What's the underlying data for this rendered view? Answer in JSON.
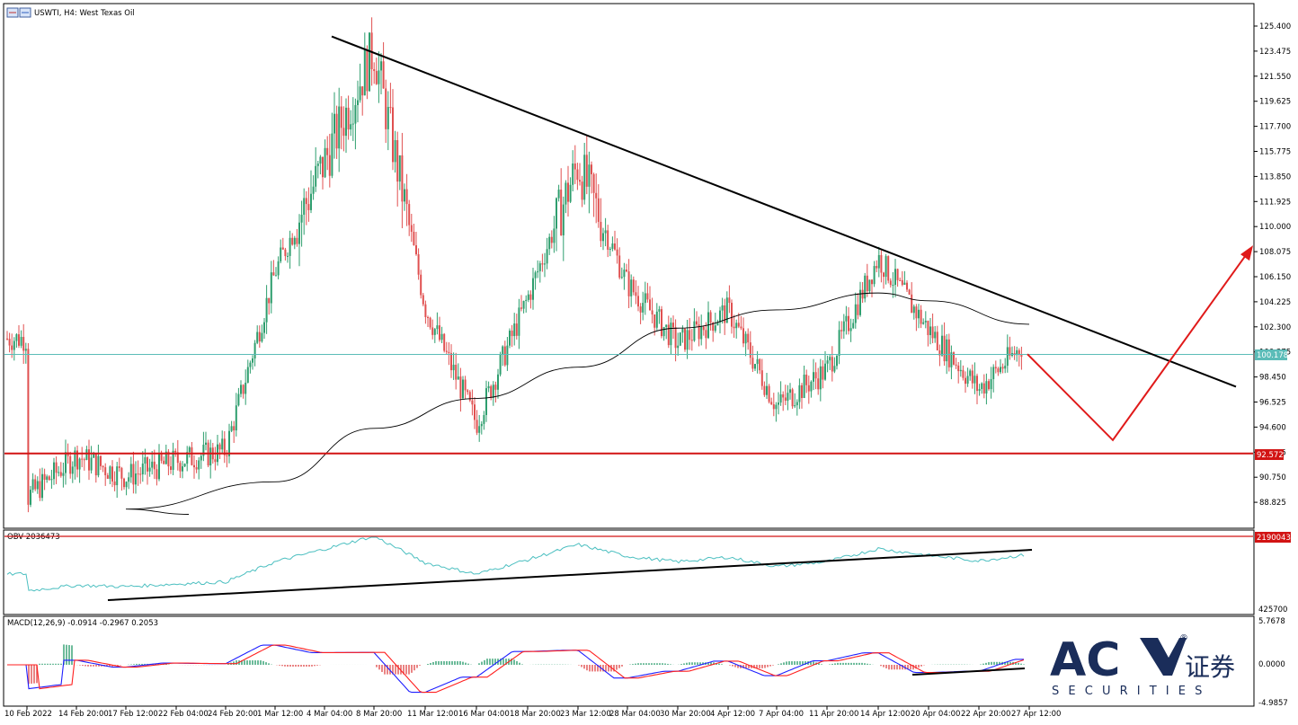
{
  "window": {
    "title": "USWTI, H4:  West Texas Oil",
    "icon_name": "chart-window-icon"
  },
  "price_panel": {
    "current_price_label": "100.178",
    "support_price_label": "92.572",
    "y_ticks": [
      "125.400",
      "123.475",
      "121.550",
      "119.625",
      "117.700",
      "115.775",
      "113.850",
      "111.925",
      "110.000",
      "108.075",
      "106.150",
      "104.225",
      "102.300",
      "100.375",
      "98.450",
      "96.525",
      "94.600",
      "92.675",
      "90.750",
      "88.825"
    ]
  },
  "obv_panel": {
    "title": "OBV 2036473",
    "current_label": "2190043",
    "bottom_tick": "425700"
  },
  "macd_panel": {
    "title": "MACD(12,26,9) -0.0914 -0.2967 0.2053",
    "y_ticks": [
      "5.7678",
      "0.0000",
      "-4.9857"
    ]
  },
  "x_ticks": [
    "10 Feb 2022",
    "14 Feb 20:00",
    "17 Feb 12:00",
    "22 Feb 04:00",
    "24 Feb 20:00",
    "1 Mar 12:00",
    "4 Mar 04:00",
    "8 Mar 20:00",
    "11 Mar 12:00",
    "16 Mar 04:00",
    "18 Mar 20:00",
    "23 Mar 12:00",
    "28 Mar 04:00",
    "30 Mar 20:00",
    "4 Apr 12:00",
    "7 Apr 04:00",
    "11 Apr 20:00",
    "14 Apr 12:00",
    "20 Apr 04:00",
    "22 Apr 20:00",
    "27 Apr 12:00"
  ],
  "logo": {
    "main": "AC",
    "chinese": "证券",
    "sub": "S E C U R I T I E S",
    "registered": "®"
  },
  "colors": {
    "bull": "#2e9e6e",
    "bear": "#e05050",
    "ma": "#000000",
    "obv": "#4bbfc0",
    "macd": "#1f1fff",
    "signal": "#ff1f1f",
    "support": "#d21414",
    "current": "#5bbcb8",
    "logo": "#1a2d5a"
  },
  "chart_data": {
    "type": "candlestick",
    "approximate": true,
    "x_ticks": [
      "10 Feb 2022",
      "14 Feb 20:00",
      "17 Feb 12:00",
      "22 Feb 04:00",
      "24 Feb 20:00",
      "1 Mar 12:00",
      "4 Mar 04:00",
      "8 Mar 20:00",
      "11 Mar 12:00",
      "16 Mar 04:00",
      "18 Mar 20:00",
      "23 Mar 12:00",
      "28 Mar 04:00",
      "30 Mar 20:00",
      "4 Apr 12:00",
      "7 Apr 04:00",
      "11 Apr 20:00",
      "14 Apr 12:00",
      "20 Apr 04:00",
      "22 Apr 20:00",
      "27 Apr 12:00"
    ],
    "price_path": [
      [
        "10 Feb 2022",
        89.2
      ],
      [
        "14 Feb 20:00",
        92.4
      ],
      [
        "17 Feb 12:00",
        90.8
      ],
      [
        "22 Feb 04:00",
        92.0
      ],
      [
        "24 Feb 20:00",
        92.8
      ],
      [
        "1 Mar 12:00",
        106.5
      ],
      [
        "4 Mar 04:00",
        115.0
      ],
      [
        "8 Mar 20:00",
        123.6
      ],
      [
        "11 Mar 12:00",
        103.8
      ],
      [
        "16 Mar 04:00",
        94.9
      ],
      [
        "18 Mar 20:00",
        104.5
      ],
      [
        "23 Mar 12:00",
        114.8
      ],
      [
        "28 Mar 04:00",
        105.6
      ],
      [
        "30 Mar 20:00",
        101.0
      ],
      [
        "4 Apr 12:00",
        103.6
      ],
      [
        "7 Apr 04:00",
        96.2
      ],
      [
        "11 Apr 20:00",
        99.0
      ],
      [
        "14 Apr 12:00",
        107.6
      ],
      [
        "20 Apr 04:00",
        102.1
      ],
      [
        "22 Apr 20:00",
        97.5
      ],
      [
        "27 Apr 12:00",
        101.4
      ]
    ],
    "current_price": 100.178,
    "support_level": 92.572,
    "moving_average_path": [
      [
        "17 Feb 12:00",
        88.3
      ],
      [
        "1 Mar 12:00",
        90.4
      ],
      [
        "8 Mar 20:00",
        94.5
      ],
      [
        "16 Mar 04:00",
        96.8
      ],
      [
        "23 Mar 12:00",
        99.2
      ],
      [
        "30 Mar 20:00",
        102.2
      ],
      [
        "7 Apr 04:00",
        103.6
      ],
      [
        "14 Apr 12:00",
        104.9
      ],
      [
        "20 Apr 04:00",
        104.3
      ],
      [
        "27 Apr 12:00",
        102.5
      ]
    ],
    "trendline": [
      [
        "4 Mar 04:00",
        124.6
      ],
      [
        "27 Apr 12:00",
        97.7
      ]
    ],
    "projection": [
      [
        "27 Apr 12:00",
        100.2
      ],
      [
        "22 Apr 20:00",
        93.6
      ],
      [
        "27 Apr 12:00",
        108.0
      ]
    ],
    "ylim": [
      87.5,
      126.8
    ],
    "obv": {
      "title": "OBV 2036473",
      "current": 2190043,
      "min_tick": 425700,
      "trendline": "rising"
    },
    "macd": {
      "params": "12,26,9",
      "main": -0.0914,
      "signal": -0.2967,
      "histogram": 0.2053,
      "ylim": [
        -4.9857,
        5.7678
      ]
    }
  }
}
